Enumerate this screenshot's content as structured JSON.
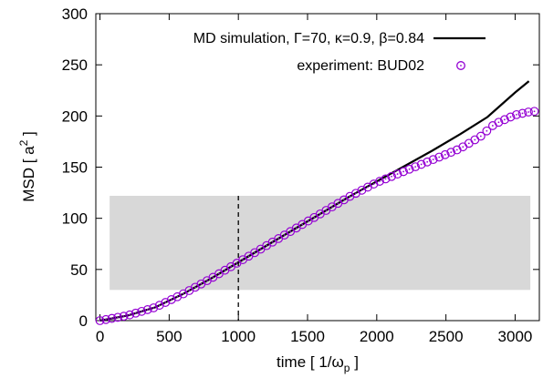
{
  "chart_data": {
    "type": "line",
    "xlim": [
      -30,
      3175
    ],
    "ylim": [
      0,
      300
    ],
    "x_ticks": [
      "0",
      "500",
      "1000",
      "1500",
      "2000",
      "2500",
      "3000"
    ],
    "y_ticks": [
      "0",
      "50",
      "100",
      "150",
      "200",
      "250",
      "300"
    ],
    "x_tick_values": [
      0,
      500,
      1000,
      1500,
      2000,
      2500,
      3000
    ],
    "y_tick_values": [
      0,
      50,
      100,
      150,
      200,
      250,
      300
    ],
    "grid": false,
    "legend_placement": "top-right",
    "xlabel": "time  [ 1/ω",
    "xlabel_sub": "p",
    "xlabel_end": " ]",
    "ylabel": "MSD  [ a",
    "ylabel_sup": "2",
    "ylabel_end": " ]",
    "shaded_region": {
      "x": [
        70,
        3110
      ],
      "y": [
        30,
        122
      ],
      "color": "#d8d8d8"
    },
    "vline": {
      "x": 1000,
      "style": "dashed"
    },
    "series": [
      {
        "name": "MD simulation, Γ=70, κ=0.9, β=0.84",
        "style": "line",
        "color": "#000000",
        "points": [
          [
            0,
            0
          ],
          [
            200,
            5
          ],
          [
            400,
            13
          ],
          [
            600,
            26
          ],
          [
            800,
            41
          ],
          [
            1000,
            57
          ],
          [
            1200,
            73
          ],
          [
            1400,
            89
          ],
          [
            1600,
            105
          ],
          [
            1800,
            121
          ],
          [
            2000,
            136
          ],
          [
            2200,
            151
          ],
          [
            2400,
            166
          ],
          [
            2600,
            182
          ],
          [
            2800,
            199
          ],
          [
            3000,
            223
          ],
          [
            3100,
            234
          ]
        ]
      },
      {
        "name": "experiment: BUD02",
        "style": "markers",
        "marker": "circle-dot",
        "color": "#9400d3",
        "points": [
          [
            0,
            0
          ],
          [
            200,
            5
          ],
          [
            400,
            13
          ],
          [
            600,
            26
          ],
          [
            800,
            41
          ],
          [
            1000,
            57
          ],
          [
            1200,
            73
          ],
          [
            1400,
            89
          ],
          [
            1600,
            105
          ],
          [
            1800,
            121
          ],
          [
            2000,
            135
          ],
          [
            2200,
            146
          ],
          [
            2400,
            157
          ],
          [
            2600,
            168
          ],
          [
            2750,
            180
          ],
          [
            2850,
            192
          ],
          [
            3000,
            201
          ],
          [
            3100,
            204
          ],
          [
            3170,
            205
          ]
        ]
      }
    ]
  }
}
